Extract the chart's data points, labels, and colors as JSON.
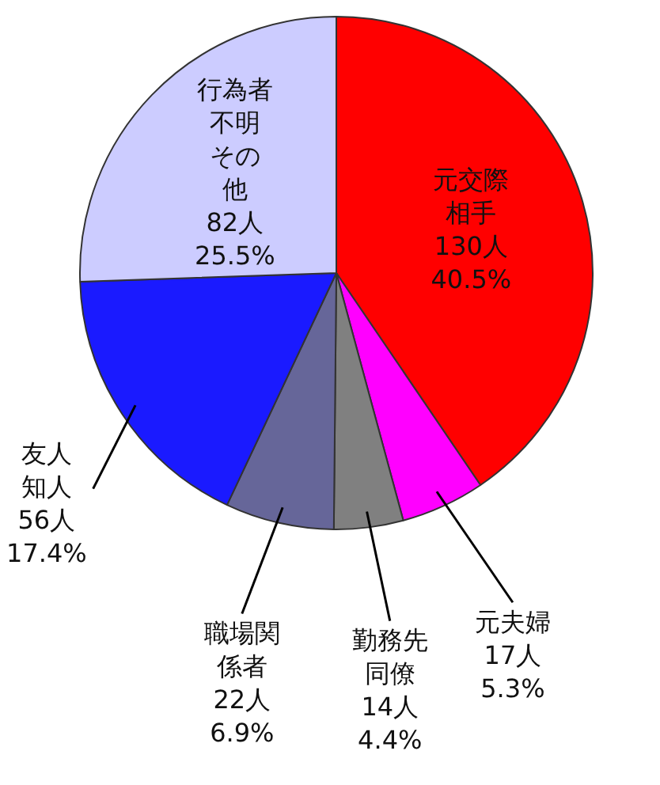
{
  "chart_data": {
    "type": "pie",
    "categories": [
      "元交際相手",
      "元夫婦",
      "勤務先同僚",
      "職場関係者",
      "友人知人",
      "行為者不明その他"
    ],
    "values": [
      130,
      17,
      14,
      22,
      56,
      82
    ],
    "colors": [
      "#ff0000",
      "#ff00ff",
      "#808080",
      "#666699",
      "#1a1aff",
      "#ccccff"
    ],
    "value_labels": [
      "130人\n40.5%",
      "17人\n5.3%",
      "14人\n4.4%",
      "22人\n6.9%",
      "56人\n17.4%",
      "82人\n25.5%"
    ]
  }
}
